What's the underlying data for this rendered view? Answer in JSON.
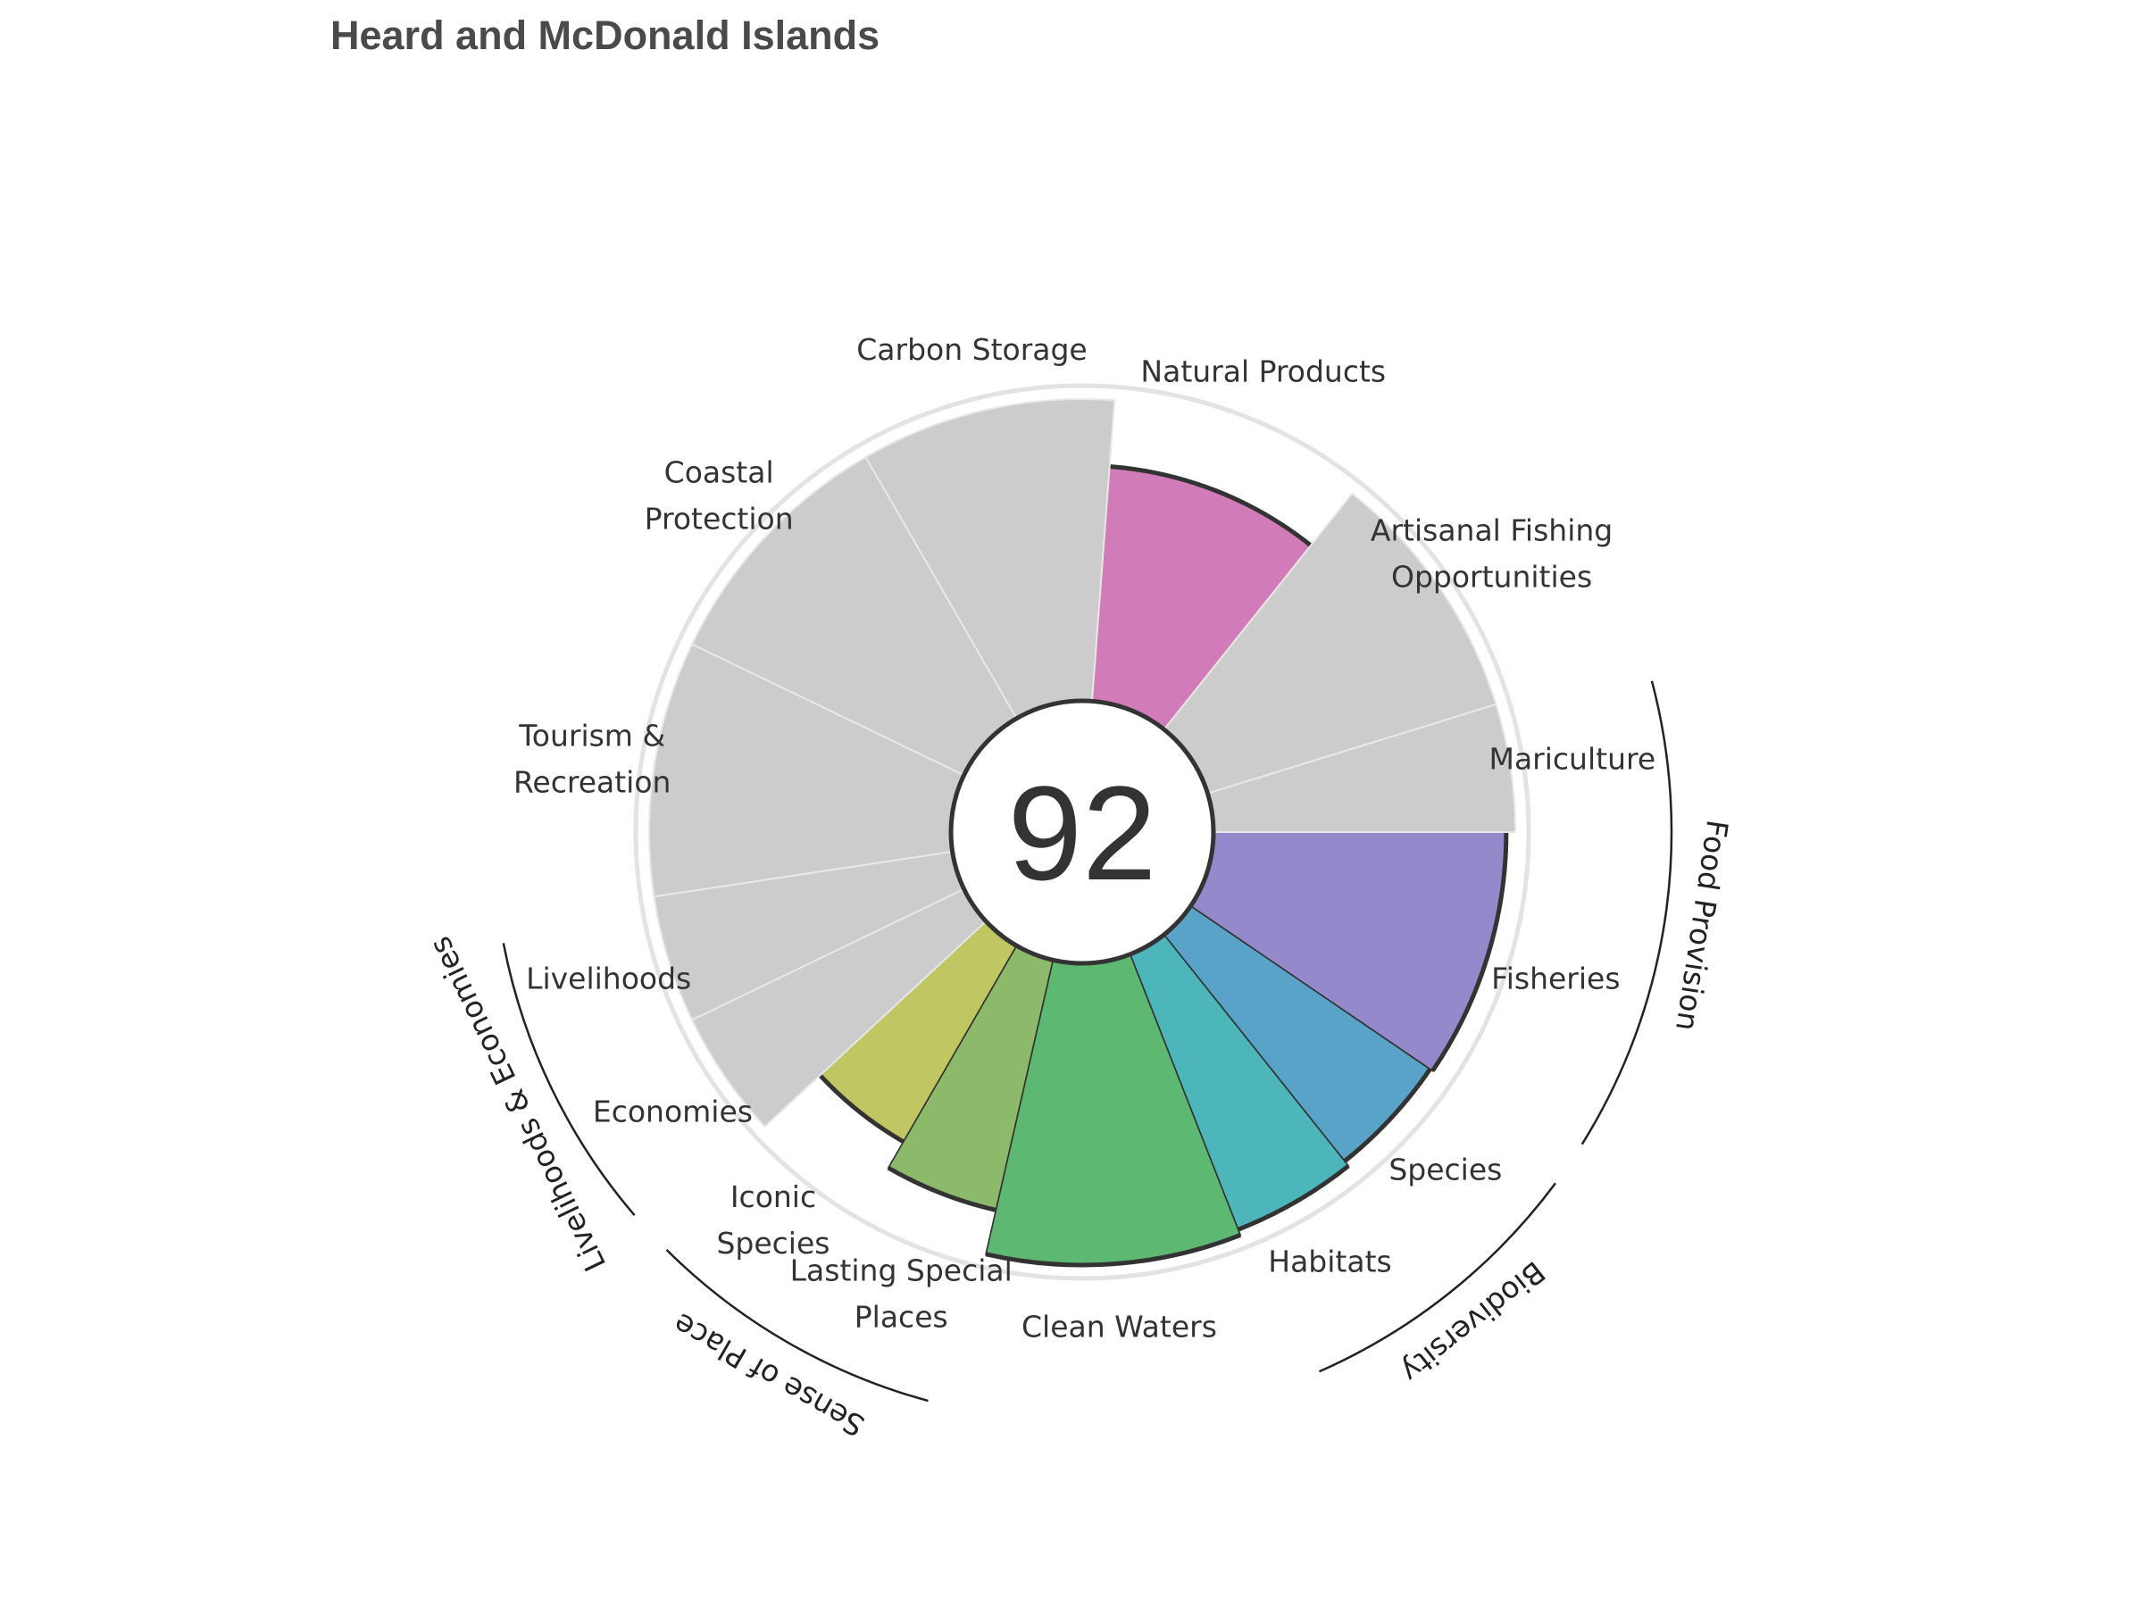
{
  "chart_data": {
    "type": "flower",
    "title": "Heard and McDonald Islands",
    "score": "92",
    "scale_max": 100,
    "petals": [
      {
        "name": "Fisheries",
        "label": [
          "Fisheries"
        ],
        "value": 97,
        "weight": 2,
        "color": "#9389cb",
        "na": false
      },
      {
        "name": "Species",
        "label": [
          "Species"
        ],
        "value": 96,
        "weight": 1,
        "color": "#5aa3c8",
        "na": false
      },
      {
        "name": "Habitats",
        "label": [
          "Habitats"
        ],
        "value": 98,
        "weight": 1,
        "color": "#4db6bb",
        "na": false
      },
      {
        "name": "Clean Waters",
        "label": [
          "Clean Waters"
        ],
        "value": 100,
        "weight": 2,
        "color": "#5db872",
        "na": false
      },
      {
        "name": "Lasting Special Places",
        "label": [
          "Lasting Special",
          "Places"
        ],
        "value": 85,
        "weight": 1,
        "color": "#8dba6a",
        "na": false
      },
      {
        "name": "Iconic Species",
        "label": [
          "Iconic",
          "Species"
        ],
        "value": 75,
        "weight": 1,
        "color": "#c0c762",
        "na": false
      },
      {
        "name": "Economies",
        "label": [
          "Economies"
        ],
        "value": 100,
        "weight": 1,
        "color": "#cccccc",
        "na": true
      },
      {
        "name": "Livelihoods",
        "label": [
          "Livelihoods"
        ],
        "value": 100,
        "weight": 1,
        "color": "#cccccc",
        "na": true
      },
      {
        "name": "Tourism & Recreation",
        "label": [
          "Tourism &",
          "Recreation"
        ],
        "value": 100,
        "weight": 2,
        "color": "#cccccc",
        "na": true
      },
      {
        "name": "Coastal Protection",
        "label": [
          "Coastal",
          "Protection"
        ],
        "value": 100,
        "weight": 2,
        "color": "#cccccc",
        "na": true
      },
      {
        "name": "Carbon Storage",
        "label": [
          "Carbon Storage"
        ],
        "value": 100,
        "weight": 2,
        "color": "#cccccc",
        "na": true
      },
      {
        "name": "Natural Products",
        "label": [
          "Natural Products"
        ],
        "value": 78,
        "weight": 2,
        "color": "#d17bb9",
        "na": false
      },
      {
        "name": "Artisanal Fishing Opportunities",
        "label": [
          "Artisanal Fishing",
          "Opportunities"
        ],
        "value": 100,
        "weight": 2,
        "color": "#cccccc",
        "na": true
      },
      {
        "name": "Mariculture",
        "label": [
          "Mariculture"
        ],
        "value": 100,
        "weight": 1,
        "color": "#cccccc",
        "na": true
      }
    ],
    "groups": [
      {
        "name": "Food Provision",
        "from": "Fisheries",
        "to": "Mariculture"
      },
      {
        "name": "Biodiversity",
        "from": "Species",
        "to": "Habitats"
      },
      {
        "name": "Sense of Place",
        "from": "Lasting Special Places",
        "to": "Iconic Species"
      },
      {
        "name": "Livelihoods & Economies",
        "from": "Economies",
        "to": "Livelihoods"
      }
    ]
  }
}
